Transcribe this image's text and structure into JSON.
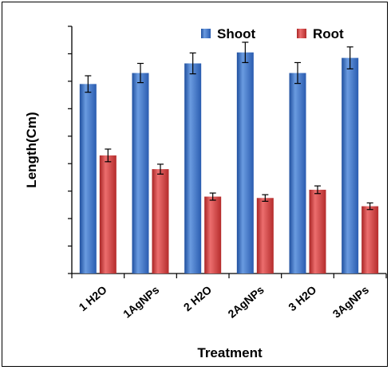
{
  "chart_data": {
    "type": "bar",
    "title": "",
    "xlabel": "Treatment",
    "ylabel": "Length(Cm)",
    "categories": [
      "1 H2O",
      "1AgNPs",
      "2 H2O",
      "2AgNPs",
      "3 H2O",
      "3AgNPs"
    ],
    "series": [
      {
        "name": "Shoot",
        "color": "#3a6fc4",
        "values": [
          6.9,
          7.3,
          7.65,
          8.05,
          7.3,
          7.85
        ],
        "errors": [
          0.3,
          0.35,
          0.38,
          0.37,
          0.38,
          0.4
        ]
      },
      {
        "name": "Root",
        "color": "#d33c3c",
        "values": [
          4.3,
          3.8,
          2.8,
          2.75,
          3.05,
          2.45
        ],
        "errors": [
          0.23,
          0.18,
          0.13,
          0.12,
          0.14,
          0.12
        ]
      }
    ],
    "ylim": [
      0,
      9
    ],
    "y_ticks": 9,
    "y_tick_labels_shown": false,
    "grid": false,
    "legend_position": "top-right"
  }
}
